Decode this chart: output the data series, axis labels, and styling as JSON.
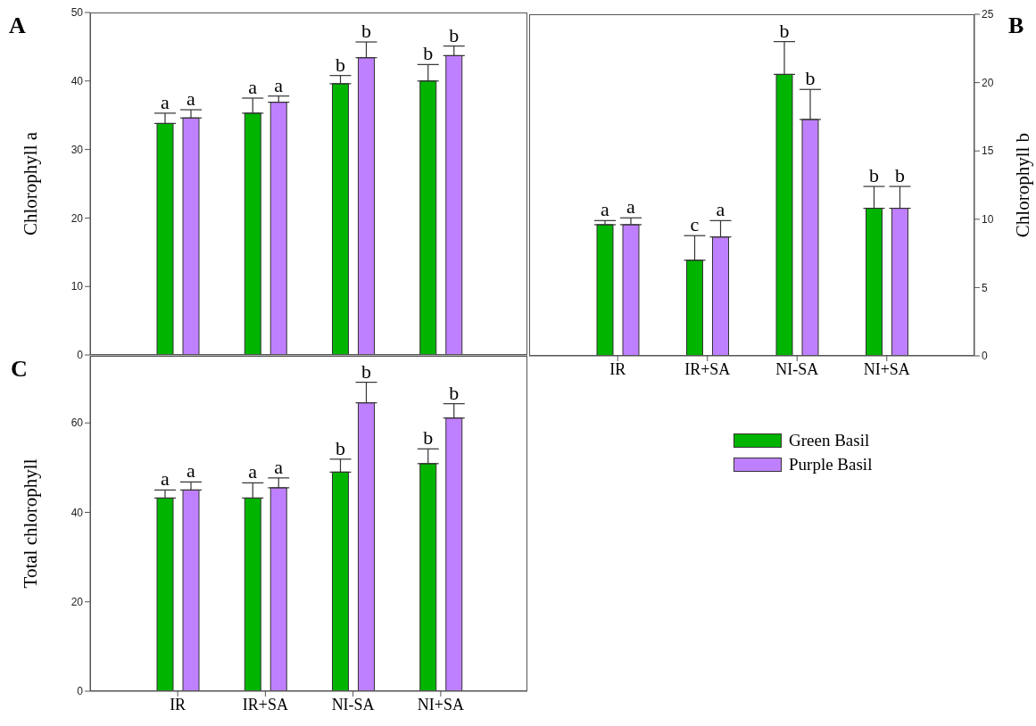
{
  "chart_data": [
    {
      "type": "bar",
      "title": "A",
      "ylabel": "Chlorophyll a",
      "categories": [
        null,
        null,
        null,
        null
      ],
      "tick_labels": "y",
      "ylim": [
        0,
        50
      ],
      "yticks": [
        0,
        10,
        20,
        30,
        40,
        50
      ],
      "series": [
        {
          "color": "#00b400",
          "values": [
            33.8,
            35.3,
            39.6,
            40.0
          ],
          "errors": [
            [
              33.8,
              35.3
            ],
            [
              35.3,
              37.5
            ],
            [
              39.6,
              40.8
            ],
            [
              40.0,
              42.4
            ]
          ],
          "value_labels": [
            "a",
            "a",
            "b",
            "b"
          ]
        },
        {
          "color": "#bf80ff",
          "values": [
            34.6,
            36.9,
            43.4,
            43.7
          ],
          "errors": [
            [
              34.6,
              35.8
            ],
            [
              36.9,
              37.8
            ],
            [
              43.4,
              45.7
            ],
            [
              43.7,
              45.1
            ]
          ],
          "value_labels": [
            "a",
            "a",
            "b",
            "b"
          ]
        }
      ]
    },
    {
      "type": "bar",
      "annotations": [
        "B"
      ],
      "y2label": "Chlorophyll b",
      "categories": [
        "IR",
        "IR+SA",
        "NI-SA",
        "NI+SA"
      ],
      "y2lim": [
        0,
        25
      ],
      "y2ticks": [
        0,
        5,
        10,
        15,
        20,
        25
      ],
      "legend": "bottom",
      "series": [
        {
          "name": "Green Basil",
          "color": "#00b400",
          "axis": "y2",
          "values": [
            9.6,
            7.0,
            20.6,
            10.8
          ],
          "errors": [
            [
              9.6,
              9.9
            ],
            [
              7.0,
              8.8
            ],
            [
              20.6,
              23.0
            ],
            [
              10.8,
              12.4
            ]
          ],
          "value_labels": [
            "a",
            "c",
            "b",
            "b"
          ]
        },
        {
          "name": "Purple Basil",
          "color": "#bf80ff",
          "axis": "y2",
          "values": [
            9.6,
            8.7,
            17.3,
            10.8
          ],
          "errors": [
            [
              9.6,
              10.1
            ],
            [
              8.7,
              9.9
            ],
            [
              17.3,
              19.5
            ],
            [
              10.8,
              12.4
            ]
          ],
          "value_labels": [
            "a",
            "a",
            "b",
            "b"
          ]
        }
      ]
    },
    {
      "type": "bar",
      "title": "C",
      "ylabel": "Total chlorophyll",
      "categories": [
        "IR",
        "IR+SA",
        "NI-SA",
        "NI+SA"
      ],
      "ylim": [
        0,
        75
      ],
      "yticks": [
        0,
        20,
        40,
        60
      ],
      "series": [
        {
          "color": "#00b400",
          "values": [
            43.2,
            43.2,
            49.0,
            50.9
          ],
          "errors": [
            [
              43.2,
              45.0
            ],
            [
              43.2,
              46.6
            ],
            [
              49.0,
              51.9
            ],
            [
              50.9,
              54.2
            ]
          ],
          "value_labels": [
            "a",
            "a",
            "b",
            "b"
          ]
        },
        {
          "color": "#bf80ff",
          "values": [
            45.0,
            45.5,
            64.5,
            61.1
          ],
          "errors": [
            [
              45.0,
              46.8
            ],
            [
              45.5,
              47.7
            ],
            [
              64.5,
              69.1
            ],
            [
              61.1,
              64.3
            ]
          ],
          "value_labels": [
            "a",
            "a",
            "b",
            "b"
          ]
        }
      ]
    }
  ]
}
